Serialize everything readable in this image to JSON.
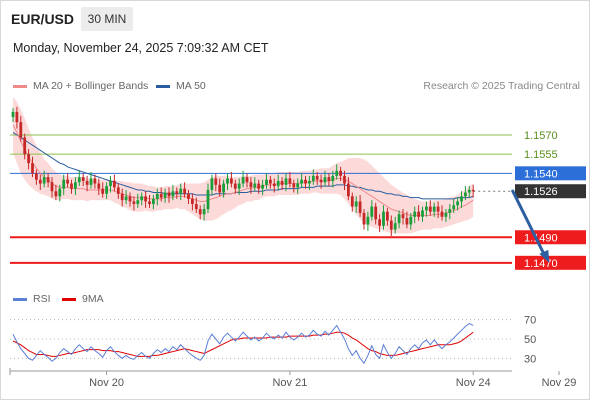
{
  "header": {
    "symbol": "EUR/USD",
    "timeframe": "30 MIN",
    "datetime": "Monday, November 24, 2025 7:09:32 AM CET"
  },
  "legend": {
    "ma20": {
      "label": "MA 20 + Bollinger Bands",
      "color": "#f08a8a"
    },
    "ma50": {
      "label": "MA 50",
      "color": "#2a5d9f"
    },
    "credit": "Research © 2025 Trading Central"
  },
  "rsi_legend": {
    "rsi": {
      "label": "RSI",
      "color": "#5b7fd6"
    },
    "ma9": {
      "label": "9MA",
      "color": "#e00000"
    }
  },
  "colors": {
    "bull": "#1a9e3a",
    "bear": "#c62828",
    "band": "#fbd3d3",
    "resistance_green": "#8ac24a",
    "support_red": "#ee1c1c",
    "current_blue": "#2d6fd8",
    "current_price_bg": "#333333",
    "arrow": "#2d5fa0"
  },
  "chart_data": [
    {
      "type": "candlestick",
      "ylim": [
        1.1455,
        1.1595
      ],
      "x_tick_labels": [
        {
          "label": "Nov 20",
          "index": 24
        },
        {
          "label": "Nov 21",
          "index": 71
        },
        {
          "label": "Nov 24",
          "index": 118
        },
        {
          "label": "Nov 29",
          "index": 140
        }
      ],
      "levels": [
        {
          "value": 1.157,
          "label": "1.1570",
          "style": "resistance"
        },
        {
          "value": 1.1555,
          "label": "1.1555",
          "style": "resistance"
        },
        {
          "value": 1.154,
          "label": "1.1540",
          "style": "current_line"
        },
        {
          "value": 1.1526,
          "label": "1.1526",
          "style": "last_price"
        },
        {
          "value": 1.149,
          "label": "1.1490",
          "style": "support"
        },
        {
          "value": 1.147,
          "label": "1.1470",
          "style": "support"
        }
      ],
      "forecast_arrow": {
        "from_index": 128,
        "from_value": 1.1527,
        "to_index": 137,
        "to_value": 1.147
      },
      "close_series": [
        1.1588,
        1.158,
        1.1568,
        1.1555,
        1.1548,
        1.154,
        1.1535,
        1.1532,
        1.1537,
        1.1533,
        1.1526,
        1.1522,
        1.1528,
        1.1535,
        1.1532,
        1.1528,
        1.1533,
        1.1537,
        1.1534,
        1.1531,
        1.1536,
        1.1532,
        1.1528,
        1.1524,
        1.153,
        1.1534,
        1.1529,
        1.1524,
        1.1519,
        1.1522,
        1.1518,
        1.1516,
        1.1519,
        1.1522,
        1.1518,
        1.1516,
        1.152,
        1.1524,
        1.1521,
        1.1525,
        1.1522,
        1.1526,
        1.1524,
        1.1528,
        1.1524,
        1.152,
        1.1516,
        1.1512,
        1.1508,
        1.1512,
        1.1527,
        1.1536,
        1.1531,
        1.1525,
        1.1532,
        1.1536,
        1.1532,
        1.1528,
        1.1532,
        1.1537,
        1.1533,
        1.1529,
        1.1532,
        1.1528,
        1.1531,
        1.1535,
        1.1532,
        1.153,
        1.1534,
        1.1531,
        1.1536,
        1.1532,
        1.1529,
        1.1532,
        1.1535,
        1.1532,
        1.1534,
        1.1538,
        1.1535,
        1.1533,
        1.1537,
        1.1534,
        1.1538,
        1.1542,
        1.1538,
        1.1532,
        1.1522,
        1.1514,
        1.1518,
        1.1509,
        1.15,
        1.1506,
        1.1514,
        1.1504,
        1.1499,
        1.151,
        1.1503,
        1.1496,
        1.1501,
        1.1508,
        1.1505,
        1.15,
        1.1506,
        1.151,
        1.1506,
        1.1511,
        1.1514,
        1.151,
        1.1514,
        1.151,
        1.1506,
        1.1509,
        1.1512,
        1.1515,
        1.1518,
        1.1522,
        1.1525,
        1.1527,
        1.1526
      ],
      "ma20_series": [
        1.1578,
        1.1572,
        1.1565,
        1.1559,
        1.1553,
        1.1548,
        1.1544,
        1.154,
        1.1537,
        1.1535,
        1.1532,
        1.153,
        1.1529,
        1.1529,
        1.1529,
        1.1528,
        1.1528,
        1.1528,
        1.1528,
        1.1527,
        1.1527,
        1.1527,
        1.1527,
        1.1527,
        1.1527,
        1.1527,
        1.1526,
        1.1525,
        1.1524,
        1.1523,
        1.1522,
        1.1521,
        1.1521,
        1.1521,
        1.1521,
        1.152,
        1.152,
        1.152,
        1.152,
        1.1521,
        1.1521,
        1.1521,
        1.1522,
        1.1522,
        1.1522,
        1.1521,
        1.152,
        1.1519,
        1.1518,
        1.1518,
        1.1519,
        1.152,
        1.1521,
        1.1522,
        1.1523,
        1.1524,
        1.1524,
        1.1525,
        1.1526,
        1.1527,
        1.1528,
        1.1528,
        1.1529,
        1.1529,
        1.153,
        1.1531,
        1.1531,
        1.1531,
        1.1532,
        1.1532,
        1.1532,
        1.1532,
        1.1532,
        1.1532,
        1.1533,
        1.1533,
        1.1533,
        1.1534,
        1.1534,
        1.1534,
        1.1534,
        1.1534,
        1.1535,
        1.1536,
        1.1536,
        1.1535,
        1.1534,
        1.1532,
        1.153,
        1.1528,
        1.1526,
        1.1524,
        1.1522,
        1.152,
        1.1518,
        1.1516,
        1.1514,
        1.1512,
        1.1511,
        1.151,
        1.1509,
        1.1508,
        1.1507,
        1.1507,
        1.1507,
        1.1507,
        1.1507,
        1.1507,
        1.1508,
        1.1508,
        1.1508,
        1.1509,
        1.151,
        1.1511,
        1.1512,
        1.1514,
        1.1515,
        1.1517,
        1.1519
      ],
      "ma50_series": [
        1.1572,
        1.157,
        1.1568,
        1.1566,
        1.1564,
        1.1562,
        1.156,
        1.1558,
        1.1556,
        1.1554,
        1.1552,
        1.155,
        1.1548,
        1.1547,
        1.1545,
        1.1544,
        1.1543,
        1.1542,
        1.1541,
        1.154,
        1.1539,
        1.1538,
        1.1537,
        1.1536,
        1.1535,
        1.1534,
        1.1533,
        1.1532,
        1.1531,
        1.153,
        1.1529,
        1.1528,
        1.1527,
        1.1527,
        1.1526,
        1.1526,
        1.1525,
        1.1525,
        1.1525,
        1.1524,
        1.1524,
        1.1524,
        1.1524,
        1.1524,
        1.1524,
        1.1524,
        1.1524,
        1.1523,
        1.1523,
        1.1523,
        1.1523,
        1.1523,
        1.1524,
        1.1524,
        1.1524,
        1.1524,
        1.1524,
        1.1525,
        1.1525,
        1.1525,
        1.1525,
        1.1526,
        1.1526,
        1.1526,
        1.1526,
        1.1527,
        1.1527,
        1.1527,
        1.1527,
        1.1528,
        1.1528,
        1.1528,
        1.1528,
        1.1528,
        1.1529,
        1.1529,
        1.1529,
        1.1529,
        1.153,
        1.153,
        1.153,
        1.153,
        1.153,
        1.1531,
        1.1531,
        1.1531,
        1.153,
        1.153,
        1.1529,
        1.1529,
        1.1528,
        1.1527,
        1.1527,
        1.1526,
        1.1526,
        1.1525,
        1.1524,
        1.1524,
        1.1523,
        1.1523,
        1.1522,
        1.1522,
        1.1521,
        1.1521,
        1.1521,
        1.152,
        1.152,
        1.152,
        1.152,
        1.152,
        1.152,
        1.152,
        1.152,
        1.152,
        1.1521,
        1.1521,
        1.1521,
        1.1521,
        1.1522
      ],
      "band_width_series": [
        0.0022,
        0.0024,
        0.0025,
        0.0024,
        0.0022,
        0.002,
        0.0018,
        0.0016,
        0.0014,
        0.0013,
        0.0012,
        0.0011,
        0.001,
        0.0009,
        0.0009,
        0.0009,
        0.0009,
        0.0009,
        0.0009,
        0.0009,
        0.0008,
        0.0008,
        0.0008,
        0.0008,
        0.0008,
        0.0008,
        0.0009,
        0.0009,
        0.001,
        0.001,
        0.0011,
        0.0011,
        0.0011,
        0.0011,
        0.001,
        0.001,
        0.001,
        0.0009,
        0.0009,
        0.0009,
        0.0009,
        0.0009,
        0.0009,
        0.001,
        0.001,
        0.0011,
        0.0012,
        0.0013,
        0.0014,
        0.0015,
        0.0016,
        0.0017,
        0.0017,
        0.0016,
        0.0015,
        0.0014,
        0.0013,
        0.0012,
        0.0011,
        0.0011,
        0.001,
        0.001,
        0.001,
        0.001,
        0.0009,
        0.0009,
        0.0009,
        0.0009,
        0.0009,
        0.0009,
        0.0009,
        0.0009,
        0.0009,
        0.0009,
        0.0009,
        0.0009,
        0.0009,
        0.0009,
        0.0009,
        0.001,
        0.001,
        0.001,
        0.0011,
        0.0012,
        0.0013,
        0.0015,
        0.0018,
        0.002,
        0.0022,
        0.0024,
        0.0025,
        0.0025,
        0.0024,
        0.0023,
        0.0022,
        0.0021,
        0.002,
        0.0019,
        0.0018,
        0.0017,
        0.0016,
        0.0015,
        0.0014,
        0.0013,
        0.0012,
        0.0011,
        0.0011,
        0.0011,
        0.0011,
        0.0011,
        0.0011,
        0.0011,
        0.0011,
        0.0011,
        0.0011,
        0.0012,
        0.0012,
        0.0013,
        0.0013,
        0.0014
      ]
    },
    {
      "type": "line",
      "ylim": [
        20,
        80
      ],
      "y_tick_labels": [
        {
          "label": "70",
          "value": 70
        },
        {
          "label": "50",
          "value": 50
        },
        {
          "label": "30",
          "value": 30
        }
      ],
      "rsi_series": [
        55,
        47,
        40,
        35,
        30,
        28,
        33,
        38,
        34,
        31,
        27,
        30,
        36,
        40,
        37,
        34,
        40,
        44,
        40,
        37,
        42,
        38,
        35,
        31,
        38,
        42,
        37,
        33,
        30,
        33,
        30,
        29,
        33,
        36,
        32,
        30,
        35,
        39,
        36,
        40,
        37,
        42,
        39,
        44,
        40,
        36,
        33,
        30,
        28,
        33,
        48,
        55,
        50,
        45,
        52,
        56,
        52,
        48,
        52,
        57,
        53,
        49,
        52,
        48,
        51,
        56,
        52,
        50,
        54,
        51,
        57,
        52,
        49,
        52,
        56,
        52,
        54,
        59,
        55,
        53,
        58,
        54,
        59,
        64,
        57,
        50,
        40,
        33,
        38,
        30,
        25,
        33,
        43,
        34,
        30,
        44,
        36,
        30,
        35,
        42,
        38,
        34,
        40,
        44,
        40,
        46,
        49,
        44,
        49,
        44,
        40,
        44,
        47,
        51,
        55,
        59,
        63,
        66,
        64
      ],
      "ma9_series": [
        48,
        46,
        44,
        41,
        38,
        36,
        34,
        34,
        34,
        33,
        32,
        32,
        33,
        34,
        35,
        35,
        36,
        37,
        38,
        39,
        39,
        39,
        39,
        38,
        38,
        38,
        37,
        37,
        36,
        35,
        34,
        33,
        32,
        32,
        32,
        32,
        33,
        33,
        34,
        35,
        36,
        37,
        38,
        39,
        40,
        39,
        38,
        37,
        36,
        35,
        37,
        39,
        41,
        43,
        45,
        47,
        49,
        50,
        50,
        51,
        51,
        51,
        51,
        51,
        51,
        51,
        52,
        52,
        52,
        52,
        52,
        53,
        53,
        53,
        53,
        53,
        53,
        54,
        54,
        54,
        55,
        55,
        56,
        57,
        57,
        56,
        54,
        51,
        49,
        46,
        43,
        40,
        38,
        37,
        35,
        34,
        33,
        33,
        33,
        34,
        35,
        36,
        37,
        38,
        39,
        40,
        41,
        42,
        43,
        44,
        44,
        44,
        44,
        45,
        46,
        48,
        51,
        54,
        57
      ]
    }
  ]
}
